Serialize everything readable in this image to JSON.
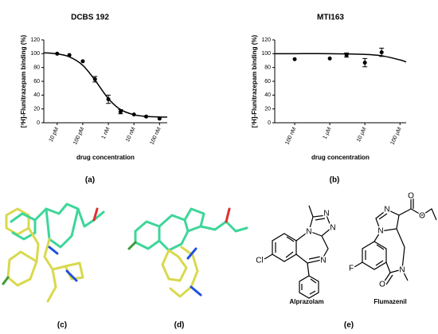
{
  "chart_data": [
    {
      "type": "scatter",
      "title": "DCBS 192",
      "xlabel": "drug concentration",
      "ylabel": "[³H]-Flunitrazepam binding (%)",
      "xscale": "log",
      "color": "#000000",
      "xlim": [
        3e-12,
        2e-07
      ],
      "xticks": [
        {
          "value": 1e-11,
          "label": "10 pM"
        },
        {
          "value": 1e-10,
          "label": "100 pM"
        },
        {
          "value": 1e-09,
          "label": "1 nM"
        },
        {
          "value": 1e-08,
          "label": "10 nM"
        },
        {
          "value": 1e-07,
          "label": "100 nM"
        }
      ],
      "ylim": [
        0,
        120
      ],
      "yticks": [
        0,
        20,
        40,
        60,
        80,
        100,
        120
      ],
      "x": [
        1e-11,
        3e-11,
        1e-10,
        3e-10,
        1e-09,
        3e-09,
        1e-08,
        3e-08,
        1e-07
      ],
      "values": [
        100,
        98,
        89,
        63,
        34,
        16,
        12,
        9,
        6
      ],
      "errors": [
        null,
        null,
        null,
        4,
        6,
        3,
        null,
        null,
        null
      ],
      "fit_x": [
        3e-12,
        1e-11,
        3e-11,
        1e-10,
        3e-10,
        1e-09,
        3e-09,
        1e-08,
        3e-08,
        1e-07,
        2e-07
      ],
      "fit_values": [
        101.3,
        99.7,
        95.4,
        83.2,
        61.7,
        34.9,
        19.1,
        11.6,
        9.2,
        8.4,
        8.2
      ],
      "panel": "(a)"
    },
    {
      "type": "scatter",
      "title": "MTI163",
      "xlabel": "drug concentration",
      "ylabel": "[³H]-Flunitrazepam binding (%)",
      "xscale": "log",
      "color": "#000000",
      "xlim": [
        2.7e-08,
        0.00015
      ],
      "xticks": [
        {
          "value": 1e-07,
          "label": "100 nM"
        },
        {
          "value": 1e-06,
          "label": "1 µM"
        },
        {
          "value": 1e-05,
          "label": "10 µM"
        },
        {
          "value": 0.0001,
          "label": "100 µM"
        }
      ],
      "ylim": [
        0,
        120
      ],
      "yticks": [
        0,
        20,
        40,
        60,
        80,
        100,
        120
      ],
      "x": [
        1e-07,
        1e-06,
        3e-06,
        1e-05,
        3e-05
      ],
      "values": [
        92,
        93,
        98,
        87,
        102
      ],
      "errors": [
        null,
        null,
        3,
        6,
        6
      ],
      "fit_x": [
        2.7e-08,
        1e-07,
        1e-06,
        1e-05,
        3e-05,
        0.0001,
        0.00015
      ],
      "fit_values": [
        100,
        100,
        100,
        99,
        97,
        91,
        88
      ],
      "panel": "(b)"
    }
  ],
  "panels": [
    "(c)",
    "(d)",
    "(e)"
  ],
  "structures": [
    {
      "name": "Alprazolam",
      "atoms": [
        "N",
        "N",
        "N",
        "N",
        "Cl"
      ]
    },
    {
      "name": "Flumazenil",
      "atoms": [
        "N",
        "N",
        "O",
        "O",
        "F",
        "O",
        "N"
      ]
    }
  ]
}
